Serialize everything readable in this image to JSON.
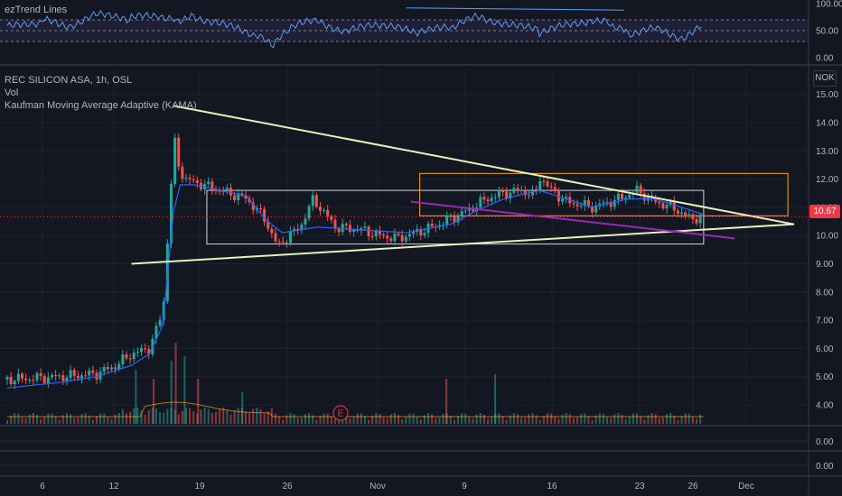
{
  "indicator_pane": {
    "title": "ezTrend Lines",
    "ticks": [
      "100.00",
      "50.00",
      "0.00"
    ]
  },
  "main_pane": {
    "symbol_line": "REC SILICON ASA, 1h, OSL",
    "vol_label": "Vol",
    "kama_label": "Kaufman Moving Average Adaptive (KAMA)",
    "currency": "NOK",
    "last_price": "10.67",
    "event_marker": "E"
  },
  "lower_panes": [
    {
      "tick": "0.00"
    },
    {
      "tick": "0.00"
    }
  ],
  "colors": {
    "background": "#131722",
    "up": "#26a69a",
    "down": "#ef5350",
    "kama": "#2962ff",
    "triangle": "#e8f0b8",
    "purple_line": "#9c27b0",
    "orange_box": "#f5a623",
    "rsi": "#5b9cf6",
    "price_badge": "#f23645"
  },
  "chart_data": {
    "type": "candlestick",
    "title": "REC SILICON ASA, 1h, OSL",
    "y_range": [
      3.5,
      15.2
    ],
    "y_ticks": [
      15.0,
      14.0,
      13.0,
      12.0,
      11.0,
      10.0,
      9.0,
      8.0,
      7.0,
      6.0,
      5.0,
      4.0
    ],
    "x_ticks": [
      "6",
      "12",
      "19",
      "26",
      "Nov",
      "9",
      "16",
      "23",
      "26",
      "Dec"
    ],
    "last_price": 10.67,
    "close_path": [
      [
        0,
        4.9
      ],
      [
        6,
        5.0
      ],
      [
        10,
        5.1
      ],
      [
        12,
        5.35
      ],
      [
        14,
        5.8
      ],
      [
        16,
        6.0
      ],
      [
        17,
        6.8
      ],
      [
        17.6,
        7.5
      ],
      [
        18.0,
        9.5
      ],
      [
        18.4,
        11.5
      ],
      [
        18.7,
        12.8
      ],
      [
        19.0,
        13.5
      ],
      [
        19.3,
        12.5
      ],
      [
        20,
        12.0
      ],
      [
        22,
        11.8
      ],
      [
        25,
        11.5
      ],
      [
        27,
        11.3
      ],
      [
        29,
        10.6
      ],
      [
        30.5,
        9.6
      ],
      [
        31,
        9.8
      ],
      [
        33,
        10.3
      ],
      [
        34.5,
        11.3
      ],
      [
        35,
        11.1
      ],
      [
        37,
        10.3
      ],
      [
        40,
        10.2
      ],
      [
        42,
        10.0
      ],
      [
        44,
        9.9
      ],
      [
        46,
        10.1
      ],
      [
        48,
        10.3
      ],
      [
        50,
        10.6
      ],
      [
        52,
        10.9
      ],
      [
        54,
        11.3
      ],
      [
        56,
        11.5
      ],
      [
        58,
        11.6
      ],
      [
        59.5,
        11.4
      ],
      [
        60,
        12.1
      ],
      [
        61,
        11.7
      ],
      [
        63,
        11.2
      ],
      [
        66,
        11.0
      ],
      [
        69,
        11.3
      ],
      [
        71,
        11.6
      ],
      [
        73,
        11.2
      ],
      [
        75,
        11.0
      ],
      [
        77,
        10.6
      ],
      [
        78.5,
        10.67
      ]
    ],
    "kama_path": [
      [
        0,
        4.6
      ],
      [
        6,
        4.8
      ],
      [
        10,
        5.0
      ],
      [
        14,
        5.4
      ],
      [
        16,
        5.8
      ],
      [
        17.5,
        6.8
      ],
      [
        18.2,
        9.0
      ],
      [
        18.7,
        10.8
      ],
      [
        19.5,
        11.8
      ],
      [
        21,
        11.8
      ],
      [
        24,
        11.6
      ],
      [
        27,
        11.4
      ],
      [
        29,
        10.6
      ],
      [
        31,
        10.1
      ],
      [
        35,
        10.3
      ],
      [
        40,
        10.2
      ],
      [
        45,
        10.1
      ],
      [
        50,
        10.4
      ],
      [
        53,
        10.9
      ],
      [
        56,
        11.3
      ],
      [
        60,
        11.6
      ],
      [
        63,
        11.3
      ],
      [
        66,
        11.0
      ],
      [
        70,
        11.3
      ],
      [
        73,
        11.3
      ],
      [
        76,
        11.0
      ],
      [
        78.5,
        10.75
      ]
    ],
    "drawings": {
      "triangle_upper": [
        [
          18.7,
          14.6
        ],
        [
          88.7,
          10.4
        ]
      ],
      "triangle_lower": [
        [
          14.0,
          9.0
        ],
        [
          88.7,
          10.4
        ]
      ],
      "purple_line": [
        [
          45.5,
          11.2
        ],
        [
          82.0,
          9.9
        ]
      ],
      "white_box": {
        "x": [
          22.5,
          78.5
        ],
        "y": [
          9.7,
          11.6
        ]
      },
      "orange_box": {
        "x": [
          46.5,
          88.0
        ],
        "y": [
          10.7,
          12.2
        ]
      }
    },
    "volume_spikes": [
      [
        14.5,
        0.6
      ],
      [
        16.5,
        0.5
      ],
      [
        18.5,
        0.7
      ],
      [
        19.0,
        0.9
      ],
      [
        20.0,
        0.75
      ],
      [
        21.5,
        0.5
      ],
      [
        26.5,
        0.35
      ],
      [
        49.5,
        0.5
      ],
      [
        55.0,
        0.55
      ]
    ],
    "rsi_path": [
      [
        0,
        55
      ],
      [
        4,
        68
      ],
      [
        7,
        60
      ],
      [
        10,
        78
      ],
      [
        14,
        72
      ],
      [
        17,
        80
      ],
      [
        19,
        70
      ],
      [
        21,
        78
      ],
      [
        24,
        62
      ],
      [
        28,
        40
      ],
      [
        30,
        22
      ],
      [
        32,
        55
      ],
      [
        35,
        70
      ],
      [
        38,
        48
      ],
      [
        42,
        60
      ],
      [
        46,
        46
      ],
      [
        50,
        55
      ],
      [
        53,
        75
      ],
      [
        56,
        65
      ],
      [
        60,
        48
      ],
      [
        63,
        58
      ],
      [
        66,
        72
      ],
      [
        68,
        62
      ],
      [
        70,
        45
      ],
      [
        73,
        52
      ],
      [
        76,
        38
      ],
      [
        78.5,
        58
      ]
    ]
  }
}
